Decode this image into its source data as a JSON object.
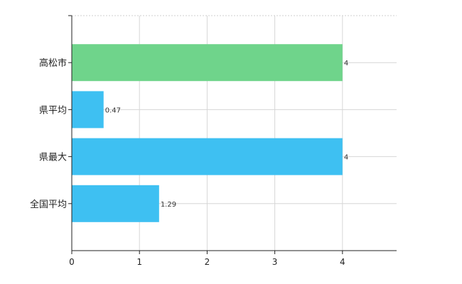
{
  "chart_data": {
    "type": "bar",
    "orientation": "horizontal",
    "categories": [
      "高松市",
      "県平均",
      "県最大",
      "全国平均"
    ],
    "values": [
      4,
      0.47,
      4,
      1.29
    ],
    "value_labels": [
      "4",
      "0.47",
      "4",
      "1.29"
    ],
    "colors": [
      "#6fd48b",
      "#3ec0f2",
      "#3ec0f2",
      "#3ec0f2"
    ],
    "xlim": [
      0,
      4.8
    ],
    "xticks": [
      0,
      1,
      2,
      3,
      4
    ],
    "xtick_labels": [
      "0",
      "1",
      "2",
      "3",
      "4"
    ],
    "grid": true,
    "title": "",
    "xlabel": "",
    "ylabel": ""
  }
}
